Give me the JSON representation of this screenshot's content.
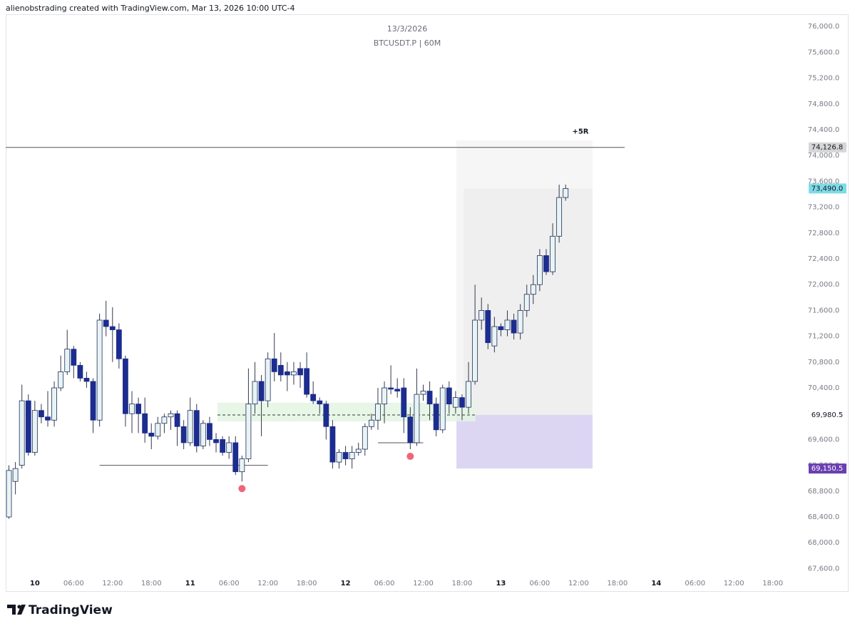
{
  "header": "alienobstrading created with TradingView.com, Mar 13, 2026 10:00 UTC-4",
  "logo": "TradingView",
  "chart_data": {
    "type": "candlestick",
    "title": "13/3/2026",
    "subtitle": "BTCUSDT.P | 60M",
    "up_color": "#e8f4f4",
    "up_border": "#1f2d5a",
    "down_color": "#1c2d8f",
    "wick_color": "#333a4d",
    "grid": false,
    "xlim": [
      -4.5,
      118
    ],
    "xticks": [
      {
        "value": 0,
        "label": "10"
      },
      {
        "value": 6,
        "label": "06:00"
      },
      {
        "value": 12,
        "label": "12:00"
      },
      {
        "value": 18,
        "label": "18:00"
      },
      {
        "value": 24,
        "label": "11"
      },
      {
        "value": 30,
        "label": "06:00"
      },
      {
        "value": 36,
        "label": "12:00"
      },
      {
        "value": 42,
        "label": "18:00"
      },
      {
        "value": 48,
        "label": "12"
      },
      {
        "value": 54,
        "label": "06:00"
      },
      {
        "value": 60,
        "label": "12:00"
      },
      {
        "value": 66,
        "label": "18:00"
      },
      {
        "value": 72,
        "label": "13"
      },
      {
        "value": 78,
        "label": "06:00"
      },
      {
        "value": 84,
        "label": "12:00"
      },
      {
        "value": 90,
        "label": "18:00"
      },
      {
        "value": 96,
        "label": "14"
      },
      {
        "value": 102,
        "label": "06:00"
      },
      {
        "value": 108,
        "label": "12:00"
      },
      {
        "value": 114,
        "label": "18:00"
      }
    ],
    "ylim": [
      67240,
      76190
    ],
    "yticks": [
      {
        "value": 67600,
        "label": "67,600.0"
      },
      {
        "value": 68000,
        "label": "68,000.0"
      },
      {
        "value": 68400,
        "label": "68,400.0"
      },
      {
        "value": 68800,
        "label": "68,800.0"
      },
      {
        "value": 69200,
        "label": "69,200.0"
      },
      {
        "value": 69600,
        "label": "69,600.0"
      },
      {
        "value": 70000,
        "label": "70,000.0"
      },
      {
        "value": 70400,
        "label": "70,400.0"
      },
      {
        "value": 70800,
        "label": "70,800.0"
      },
      {
        "value": 71200,
        "label": "71,200.0"
      },
      {
        "value": 71600,
        "label": "71,600.0"
      },
      {
        "value": 72000,
        "label": "72,000.0"
      },
      {
        "value": 72400,
        "label": "72,400.0"
      },
      {
        "value": 72800,
        "label": "72,800.0"
      },
      {
        "value": 73200,
        "label": "73,200.0"
      },
      {
        "value": 73600,
        "label": "73,600.0"
      },
      {
        "value": 74000,
        "label": "74,000.0"
      },
      {
        "value": 74400,
        "label": "74,400.0"
      },
      {
        "value": 74800,
        "label": "74,800.0"
      },
      {
        "value": 75200,
        "label": "75,200.0"
      },
      {
        "value": 75600,
        "label": "75,600.0"
      },
      {
        "value": 76000,
        "label": "76,000.0"
      }
    ],
    "x": [
      -4,
      -3,
      -2,
      -1,
      0,
      1,
      2,
      3,
      4,
      5,
      6,
      7,
      8,
      9,
      10,
      11,
      12,
      13,
      14,
      15,
      16,
      17,
      18,
      19,
      20,
      21,
      22,
      23,
      24,
      25,
      26,
      27,
      28,
      29,
      30,
      31,
      32,
      33,
      34,
      35,
      36,
      37,
      38,
      39,
      40,
      41,
      42,
      43,
      44,
      45,
      46,
      47,
      48,
      49,
      50,
      51,
      52,
      53,
      54,
      55,
      56,
      57,
      58,
      59,
      60,
      61,
      62,
      63,
      64,
      65,
      66,
      67,
      68,
      69,
      70,
      71,
      72,
      73,
      74,
      75,
      76,
      77,
      78,
      79,
      80,
      81,
      82
    ],
    "open": [
      68400,
      68950,
      69200,
      70200,
      69400,
      70050,
      69950,
      69900,
      70400,
      70650,
      71000,
      70750,
      70550,
      70500,
      69900,
      71450,
      71350,
      71300,
      70850,
      70000,
      70150,
      70000,
      69700,
      69650,
      69850,
      69950,
      70000,
      69800,
      69550,
      70050,
      69500,
      69850,
      69600,
      69600,
      69400,
      69550,
      69100,
      69300,
      70150,
      70500,
      70200,
      70850,
      70750,
      70650,
      70600,
      70700,
      70700,
      70300,
      70200,
      70150,
      69800,
      69250,
      69400,
      69300,
      69400,
      69450,
      69800,
      69900,
      70150,
      70400,
      70380,
      70400,
      69950,
      69550,
      70300,
      70350,
      70150,
      69750,
      70400,
      70100,
      70250,
      70100,
      70500,
      71450,
      71600,
      71050,
      71350,
      71300,
      71450,
      71250,
      71600,
      71850,
      72000,
      72450,
      72200,
      72750,
      73350
    ],
    "high": [
      69200,
      69250,
      70450,
      70300,
      70200,
      70150,
      70350,
      70500,
      70900,
      71300,
      71050,
      70800,
      70650,
      70550,
      71550,
      71750,
      71650,
      71400,
      70900,
      70350,
      70250,
      70250,
      69850,
      69950,
      70000,
      70050,
      70050,
      69900,
      70250,
      70150,
      69900,
      69950,
      69700,
      69650,
      69650,
      69650,
      69350,
      70700,
      70800,
      70600,
      70950,
      71250,
      70950,
      70800,
      70800,
      70800,
      70950,
      70500,
      70250,
      70200,
      69900,
      69450,
      69500,
      69500,
      69550,
      69850,
      70000,
      70400,
      70500,
      70750,
      70550,
      70550,
      70100,
      70700,
      70450,
      70500,
      70250,
      70450,
      70500,
      70350,
      70300,
      70800,
      72000,
      71800,
      71700,
      71500,
      71400,
      71600,
      71550,
      71700,
      72000,
      72150,
      72550,
      72550,
      72950,
      73550,
      73550
    ],
    "low": [
      68370,
      68750,
      69150,
      69350,
      69350,
      69850,
      69800,
      69800,
      70350,
      70600,
      70550,
      70500,
      70400,
      69700,
      69800,
      71200,
      70800,
      70700,
      69800,
      69700,
      69700,
      69550,
      69450,
      69600,
      69700,
      69750,
      69500,
      69450,
      69500,
      69400,
      69450,
      69500,
      69400,
      69350,
      69300,
      69050,
      68950,
      69250,
      70000,
      69650,
      70100,
      70500,
      70500,
      70350,
      70450,
      70400,
      70250,
      70150,
      70000,
      69600,
      69150,
      69150,
      69200,
      69150,
      69350,
      69350,
      69750,
      69750,
      69850,
      70300,
      70250,
      69700,
      69450,
      69500,
      70200,
      69900,
      69650,
      69700,
      70000,
      70000,
      69900,
      70000,
      70450,
      71300,
      71000,
      70950,
      71200,
      71200,
      71150,
      71150,
      71500,
      71700,
      71900,
      72150,
      72150,
      72650,
      73300
    ],
    "close": [
      69120,
      69150,
      70200,
      69400,
      70050,
      69950,
      69900,
      70400,
      70650,
      71000,
      70750,
      70550,
      70500,
      69900,
      71450,
      71350,
      71300,
      70850,
      70000,
      70150,
      70000,
      69700,
      69650,
      69850,
      69950,
      70000,
      69800,
      69550,
      70050,
      69500,
      69850,
      69600,
      69550,
      69400,
      69550,
      69100,
      69300,
      70150,
      70500,
      70200,
      70850,
      70650,
      70600,
      70600,
      70650,
      70600,
      70300,
      70200,
      70150,
      69800,
      69250,
      69400,
      69300,
      69400,
      69450,
      69800,
      69900,
      70150,
      70400,
      70380,
      70350,
      69950,
      69550,
      70300,
      70350,
      70150,
      69750,
      70400,
      70150,
      70250,
      70100,
      70500,
      71450,
      71600,
      71100,
      71350,
      71300,
      71450,
      71250,
      71600,
      71850,
      72000,
      72450,
      72200,
      72750,
      73350,
      73490
    ],
    "price_labels": [
      {
        "value": 74126.8,
        "label": "74,126.8",
        "color": "#d6d6d6",
        "text_color": "#131722"
      },
      {
        "value": 73490.0,
        "label": "73,490.0",
        "color": "#7fdbe8",
        "text_color": "#131722"
      },
      {
        "value": 69980.5,
        "label": "69,980.5",
        "color": "#ffffff",
        "text_color": "#131722"
      },
      {
        "value": 69150.5,
        "label": "69,150.5",
        "color": "#6a3fb0",
        "text_color": "#ffffff"
      }
    ],
    "target_label": "+5R",
    "entry_zone": [
      69880,
      70170
    ],
    "liquidity_lines": [
      {
        "x": [
          10,
          36
        ],
        "price": 69200
      },
      {
        "x": [
          53,
          60
        ],
        "price": 69550
      }
    ],
    "sweep_markers": [
      32,
      58
    ]
  }
}
